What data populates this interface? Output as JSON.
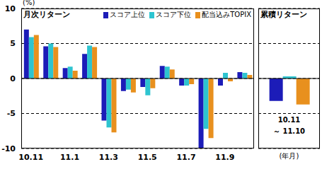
{
  "chart_data": [
    {
      "type": "bar",
      "title": "月次リターン",
      "y_label": "(%)",
      "categories": [
        "10.11",
        null,
        "11.1",
        null,
        "11.3",
        null,
        "11.5",
        null,
        "11.7",
        null,
        "11.9",
        null
      ],
      "series": [
        {
          "name": "スコア上位",
          "color": "#1c1cb8",
          "values": [
            7.0,
            4.6,
            1.5,
            3.5,
            -6.0,
            -1.8,
            -1.2,
            1.8,
            -1.0,
            -10.0,
            -1.0,
            0.9
          ]
        },
        {
          "name": "スコア下位",
          "color": "#2ec4d0",
          "values": [
            5.9,
            5.0,
            1.7,
            4.7,
            -7.0,
            -1.6,
            -2.4,
            1.7,
            -1.0,
            -7.2,
            0.8,
            0.8
          ]
        },
        {
          "name": "配当込みTOPIX",
          "color": "#e8901e",
          "values": [
            6.2,
            4.5,
            1.1,
            4.5,
            -7.7,
            -2.0,
            -1.4,
            1.3,
            -0.8,
            -8.5,
            -0.4,
            0.5
          ]
        }
      ],
      "ylim": [
        -10,
        10
      ],
      "yticks": [
        -10,
        -5,
        0,
        5,
        10
      ],
      "grid": true,
      "legend": "upper right"
    },
    {
      "type": "bar",
      "title": "累積リターン",
      "x_label": "(年月)",
      "annotations": [
        "10.11",
        "～ 11.10"
      ],
      "categories": [
        null
      ],
      "series": [
        {
          "name": "スコア上位",
          "color": "#1c1cb8",
          "values": [
            -3.2
          ]
        },
        {
          "name": "スコア下位",
          "color": "#2ec4d0",
          "values": [
            0.3
          ]
        },
        {
          "name": "配当込みTOPIX",
          "color": "#e8901e",
          "values": [
            -3.7
          ]
        }
      ],
      "ylim": [
        -10,
        10
      ],
      "yticks": [
        -10,
        -5,
        0,
        5,
        10
      ],
      "grid": true,
      "tick_labels": false
    }
  ]
}
